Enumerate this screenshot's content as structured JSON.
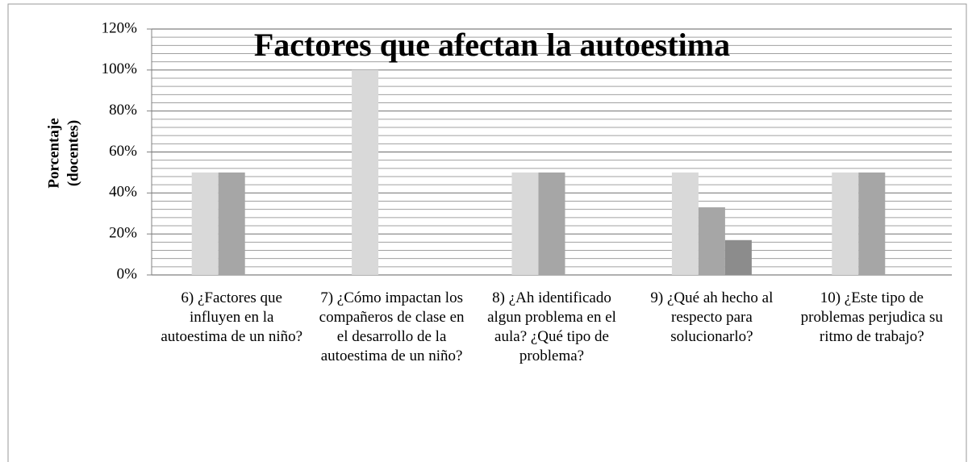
{
  "chart_data": {
    "type": "bar",
    "title": "Factores que afectan la autoestima",
    "ylabel": [
      "Porcentaje",
      "(docentes)"
    ],
    "categories": [
      "6) ¿Factores que influyen en la autoestima de un niño?",
      "7) ¿Cómo impactan los compañeros de clase en el desarrollo de la autoestima de un niño?",
      "8) ¿Ah identificado algun problema en el aula? ¿Qué tipo de problema?",
      "9) ¿Qué ah hecho al respecto para solucionarlo?",
      "10) ¿Este tipo de problemas perjudica su ritmo de trabajo?"
    ],
    "series": [
      {
        "color": "#d9d9d9",
        "values": [
          50,
          100,
          50,
          50,
          50
        ]
      },
      {
        "color": "#a6a6a6",
        "values": [
          50,
          null,
          50,
          33,
          50
        ]
      },
      {
        "color": "#8c8c8c",
        "values": [
          null,
          null,
          null,
          17,
          null
        ]
      }
    ],
    "ylim": [
      0,
      120
    ],
    "yticks": [
      {
        "value": 0,
        "label": "0%"
      },
      {
        "value": 20,
        "label": "20%"
      },
      {
        "value": 40,
        "label": "40%"
      },
      {
        "value": 60,
        "label": "60%"
      },
      {
        "value": 80,
        "label": "80%"
      },
      {
        "value": 100,
        "label": "100%"
      },
      {
        "value": 120,
        "label": "120%"
      }
    ],
    "yticks_minor": [
      4,
      8,
      12,
      16,
      24,
      28,
      32,
      36,
      44,
      48,
      52,
      56,
      64,
      68,
      72,
      76,
      84,
      88,
      92,
      96,
      104,
      108,
      112,
      116
    ],
    "grid": true
  }
}
